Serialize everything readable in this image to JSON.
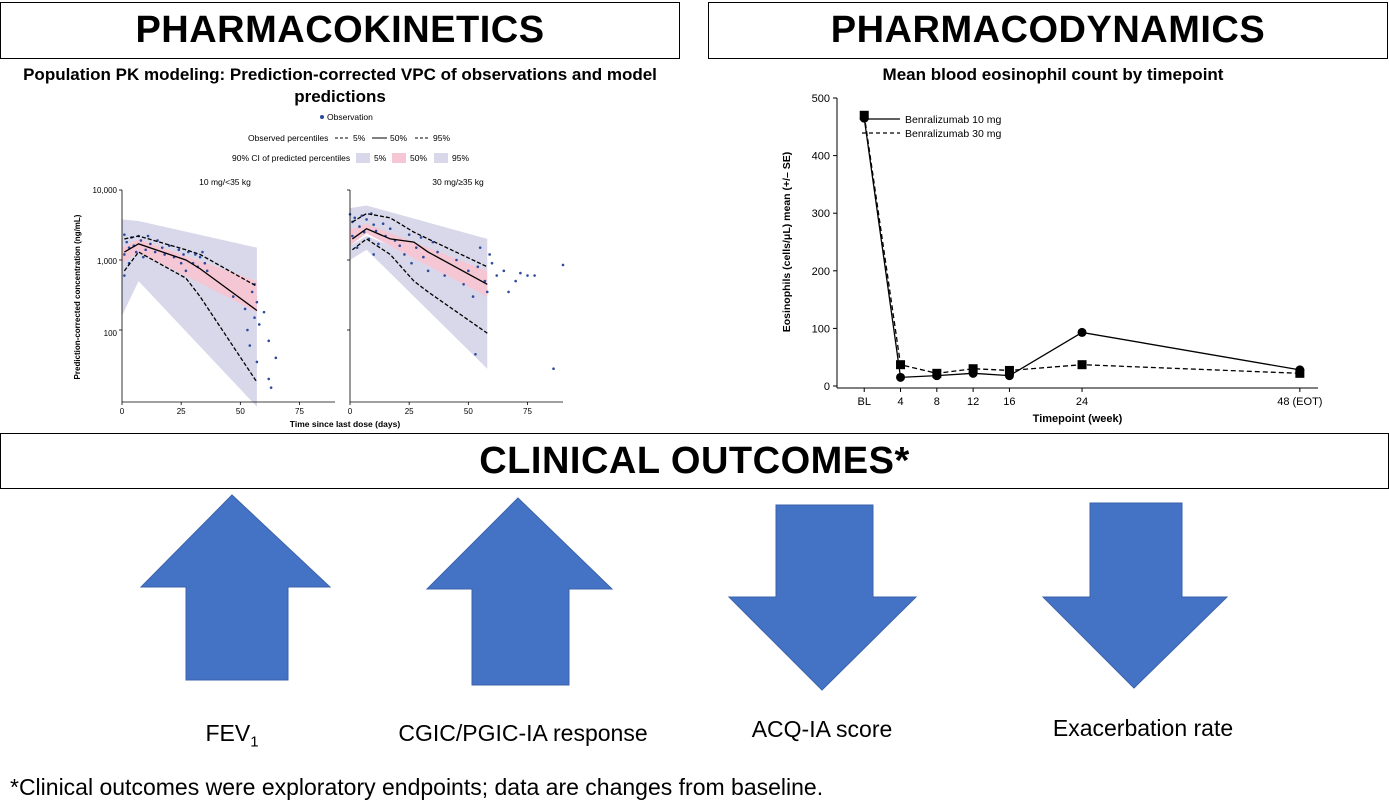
{
  "headers": {
    "pk": "PHARMACOKINETICS",
    "pd": "PHARMACODYNAMICS",
    "outcomes": "CLINICAL OUTCOMES*"
  },
  "pk": {
    "subtitle": "Population PK modeling: Prediction-corrected VPC of observations and model predictions",
    "legend": {
      "observation": "Observation",
      "observed_label": "Observed percentiles",
      "observed_items": [
        "5%",
        "50%",
        "95%"
      ],
      "ci_label": "90% CI of predicted percentiles",
      "ci_items": [
        "5%",
        "50%",
        "95%"
      ]
    },
    "ylabel": "Prediction-corrected concentration (ng/mL)",
    "xlabel": "Time since last dose (days)",
    "yticks": [
      "10,000",
      "1,000",
      "100"
    ],
    "panel_titles": [
      "10 mg/<35 kg",
      "30 mg/≥35 kg"
    ]
  },
  "pd": {
    "subtitle": "Mean blood eosinophil count by timepoint"
  },
  "chart_data": [
    {
      "type": "scatter",
      "panel": "10 mg/<35 kg",
      "x_range": [
        0,
        90
      ],
      "y_range_log": [
        10,
        10000
      ],
      "xticks": [
        0,
        25,
        50,
        75
      ],
      "observed_median": {
        "x": [
          1,
          7,
          27,
          33,
          57
        ],
        "y": [
          1300,
          1700,
          1000,
          750,
          190
        ]
      },
      "observed_p5": {
        "x": [
          1,
          7,
          27,
          33,
          57
        ],
        "y": [
          700,
          1300,
          550,
          300,
          18
        ]
      },
      "observed_p95": {
        "x": [
          1,
          7,
          27,
          33,
          57
        ],
        "y": [
          2000,
          2200,
          1400,
          1200,
          420
        ]
      },
      "ci_p5": {
        "x": [
          0,
          7,
          57
        ],
        "lower": [
          160,
          500,
          8
        ],
        "upper": [
          900,
          1400,
          320
        ]
      },
      "ci_p50": {
        "x": [
          0,
          7,
          57
        ],
        "lower": [
          900,
          1300,
          180
        ],
        "upper": [
          1500,
          2000,
          500
        ]
      },
      "ci_p95": {
        "x": [
          0,
          7,
          57
        ],
        "lower": [
          1500,
          2000,
          500
        ],
        "upper": [
          3800,
          3600,
          1500
        ]
      },
      "observations": [
        [
          1,
          600
        ],
        [
          1,
          1200
        ],
        [
          1,
          2300
        ],
        [
          2,
          1800
        ],
        [
          3,
          900
        ],
        [
          3,
          1500
        ],
        [
          4,
          2100
        ],
        [
          5,
          1600
        ],
        [
          6,
          1300
        ],
        [
          7,
          2200
        ],
        [
          8,
          1900
        ],
        [
          9,
          1100
        ],
        [
          10,
          1400
        ],
        [
          11,
          2200
        ],
        [
          12,
          1700
        ],
        [
          14,
          1300
        ],
        [
          15,
          1900
        ],
        [
          17,
          1500
        ],
        [
          18,
          1200
        ],
        [
          20,
          1600
        ],
        [
          22,
          1100
        ],
        [
          24,
          1400
        ],
        [
          25,
          900
        ],
        [
          26,
          1200
        ],
        [
          27,
          700
        ],
        [
          28,
          1300
        ],
        [
          30,
          900
        ],
        [
          31,
          1200
        ],
        [
          32,
          800
        ],
        [
          33,
          1100
        ],
        [
          34,
          1300
        ],
        [
          35,
          900
        ],
        [
          36,
          700
        ],
        [
          47,
          300
        ],
        [
          52,
          200
        ],
        [
          53,
          100
        ],
        [
          54,
          60
        ],
        [
          55,
          350
        ],
        [
          56,
          450
        ],
        [
          56,
          150
        ],
        [
          57,
          250
        ],
        [
          58,
          120
        ],
        [
          60,
          180
        ],
        [
          62,
          70
        ],
        [
          62,
          20
        ],
        [
          63,
          15
        ],
        [
          65,
          40
        ],
        [
          57,
          35
        ]
      ]
    },
    {
      "type": "scatter",
      "panel": "30 mg/≥35 kg",
      "x_range": [
        0,
        90
      ],
      "y_range_log": [
        10,
        10000
      ],
      "xticks": [
        0,
        25,
        50,
        75
      ],
      "observed_median": {
        "x": [
          1,
          7,
          17,
          27,
          33,
          58
        ],
        "y": [
          2000,
          2800,
          2000,
          1800,
          1300,
          450
        ]
      },
      "observed_p5": {
        "x": [
          1,
          7,
          17,
          27,
          33,
          58
        ],
        "y": [
          1400,
          2000,
          1200,
          500,
          350,
          90
        ]
      },
      "observed_p95": {
        "x": [
          1,
          7,
          17,
          27,
          33,
          58
        ],
        "y": [
          3500,
          4600,
          4000,
          2500,
          2000,
          800
        ]
      },
      "ci_p5": {
        "x": [
          0,
          7,
          58
        ],
        "lower": [
          1000,
          1400,
          28
        ],
        "upper": [
          1600,
          2200,
          450
        ]
      },
      "ci_p50": {
        "x": [
          0,
          7,
          58
        ],
        "lower": [
          1600,
          2400,
          300
        ],
        "upper": [
          2700,
          3300,
          700
        ]
      },
      "ci_p95": {
        "x": [
          0,
          7,
          58
        ],
        "lower": [
          2600,
          3200,
          700
        ],
        "upper": [
          5500,
          6000,
          2000
        ]
      },
      "observations": [
        [
          0,
          4500
        ],
        [
          1,
          3500
        ],
        [
          1,
          2200
        ],
        [
          2,
          4000
        ],
        [
          3,
          1500
        ],
        [
          4,
          3000
        ],
        [
          5,
          4300
        ],
        [
          6,
          2500
        ],
        [
          7,
          3800
        ],
        [
          8,
          2000
        ],
        [
          9,
          4600
        ],
        [
          10,
          3200
        ],
        [
          11,
          2600
        ],
        [
          12,
          1700
        ],
        [
          14,
          3300
        ],
        [
          15,
          2200
        ],
        [
          17,
          2800
        ],
        [
          19,
          1900
        ],
        [
          21,
          1600
        ],
        [
          23,
          1200
        ],
        [
          25,
          2300
        ],
        [
          26,
          900
        ],
        [
          28,
          1500
        ],
        [
          30,
          2100
        ],
        [
          31,
          1100
        ],
        [
          33,
          700
        ],
        [
          35,
          1800
        ],
        [
          37,
          1300
        ],
        [
          40,
          600
        ],
        [
          45,
          1000
        ],
        [
          48,
          450
        ],
        [
          50,
          700
        ],
        [
          52,
          300
        ],
        [
          54,
          800
        ],
        [
          55,
          1500
        ],
        [
          57,
          500
        ],
        [
          58,
          350
        ],
        [
          59,
          1200
        ],
        [
          60,
          900
        ],
        [
          62,
          600
        ],
        [
          65,
          700
        ],
        [
          67,
          350
        ],
        [
          70,
          500
        ],
        [
          72,
          650
        ],
        [
          75,
          600
        ],
        [
          78,
          600
        ],
        [
          86,
          28
        ],
        [
          90,
          850
        ],
        [
          53,
          45
        ],
        [
          10,
          1200
        ]
      ]
    },
    {
      "type": "line",
      "title": "Mean blood eosinophil count by timepoint",
      "xlabel": "Timepoint (week)",
      "ylabel": "Eosinophils (cells/μL) mean (+/– SE)",
      "categories": [
        "BL",
        "4",
        "8",
        "12",
        "16",
        "24",
        "48 (EOT)"
      ],
      "x": [
        0,
        4,
        8,
        12,
        16,
        24,
        48
      ],
      "ylim": [
        0,
        500
      ],
      "yticks": [
        0,
        100,
        200,
        300,
        400,
        500
      ],
      "legend_position": "top-left",
      "series": [
        {
          "name": "Benralizumab 10 mg",
          "style": "solid",
          "marker": "circle",
          "values": [
            465,
            15,
            18,
            22,
            18,
            93,
            28
          ]
        },
        {
          "name": "Benralizumab 30 mg",
          "style": "dashed",
          "marker": "square",
          "values": [
            470,
            37,
            22,
            30,
            27,
            37,
            22
          ]
        }
      ]
    }
  ],
  "outcomes": {
    "arrow_color": "#4472C4",
    "items": [
      {
        "label": "FEV",
        "sub": "1",
        "direction": "up"
      },
      {
        "label": "CGIC/PGIC-IA response",
        "sub": "",
        "direction": "up"
      },
      {
        "label": "ACQ-IA score",
        "sub": "",
        "direction": "down"
      },
      {
        "label": "Exacerbation rate",
        "sub": "",
        "direction": "down"
      }
    ]
  },
  "footnote": "*Clinical outcomes were exploratory endpoints; data are changes from baseline.",
  "colors": {
    "ci_outer": "#d8d8ea",
    "ci_median": "#f5c6d3",
    "points": "#2b4a9c",
    "lines": "#000000"
  }
}
